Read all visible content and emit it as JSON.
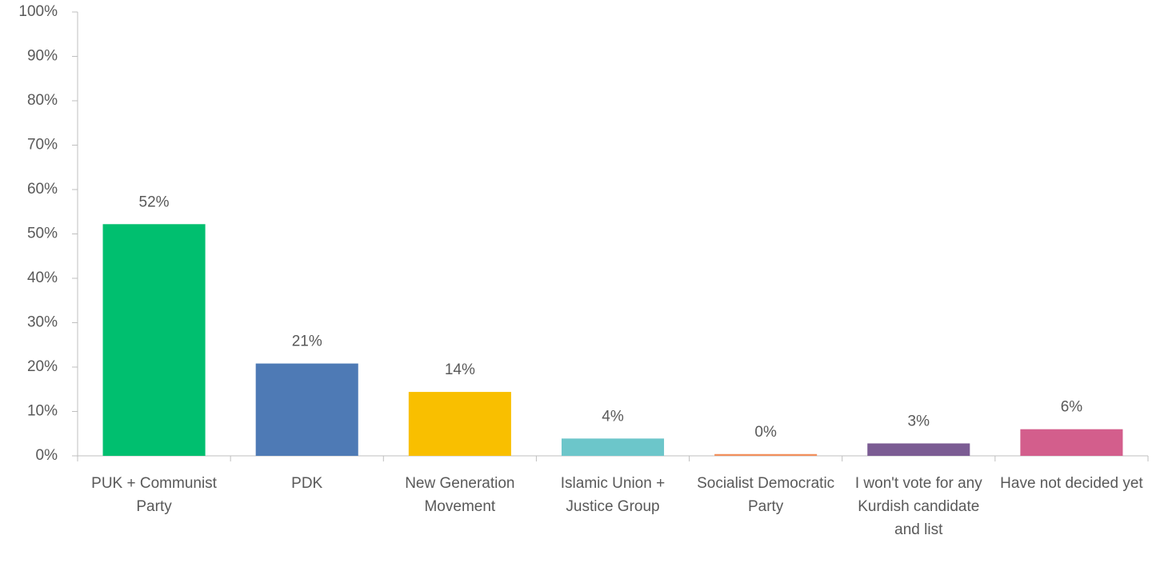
{
  "chart_data": {
    "type": "bar",
    "categories": [
      "PUK + Communist Party",
      "PDK",
      "New Generation Movement",
      "Islamic Union + Justice Group",
      "Socialist Democratic Party",
      "I won't vote for any Kurdish candidate and list",
      "Have not decided yet"
    ],
    "values": [
      52.2,
      20.8,
      14.4,
      3.9,
      0.4,
      2.8,
      6.0
    ],
    "value_labels": [
      "52%",
      "21%",
      "14%",
      "4%",
      "0%",
      "3%",
      "6%"
    ],
    "colors": [
      "#00bf6f",
      "#4e7ab5",
      "#f9bf00",
      "#6cc6ca",
      "#f28f5c",
      "#7b5c93",
      "#d35e8c"
    ],
    "ylim": [
      0,
      100
    ],
    "yticks": [
      {
        "value": 0,
        "label": "0%"
      },
      {
        "value": 10,
        "label": "10%"
      },
      {
        "value": 20,
        "label": "20%"
      },
      {
        "value": 30,
        "label": "30%"
      },
      {
        "value": 40,
        "label": "40%"
      },
      {
        "value": 50,
        "label": "50%"
      },
      {
        "value": 60,
        "label": "60%"
      },
      {
        "value": 70,
        "label": "70%"
      },
      {
        "value": 80,
        "label": "80%"
      },
      {
        "value": 90,
        "label": "90%"
      },
      {
        "value": 100,
        "label": "100%"
      }
    ],
    "grid": false
  }
}
